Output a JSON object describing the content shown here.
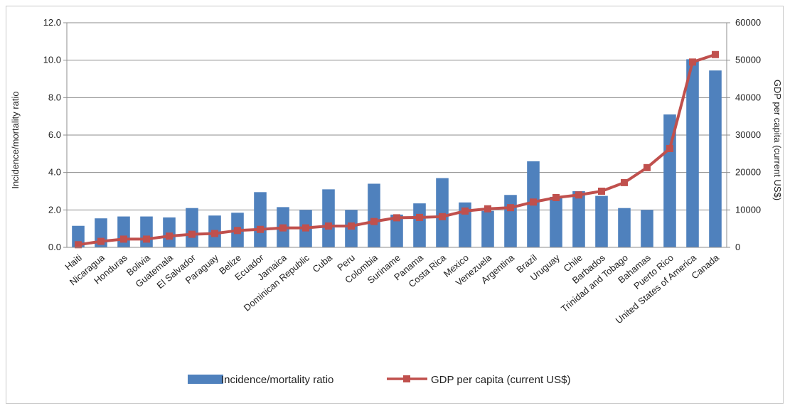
{
  "chart_data": {
    "type": "bar",
    "categories": [
      "Haiti",
      "Nicaragua",
      "Honduras",
      "Bolivia",
      "Guatemala",
      "El Salvador",
      "Paraguay",
      "Belize",
      "Ecuador",
      "Jamaica",
      "Dominican Republic",
      "Cuba",
      "Peru",
      "Colombia",
      "Suriname",
      "Panama",
      "Costa Rica",
      "Mexico",
      "Venezuela",
      "Argentina",
      "Brazil",
      "Uruguay",
      "Chile",
      "Barbados",
      "Trinidad and Tobago",
      "Bahamas",
      "Puerto Rico",
      "United States of America",
      "Canada"
    ],
    "series": [
      {
        "name": "Incidence/mortality ratio",
        "type": "bar",
        "axis": "left",
        "color": "#4F81BD",
        "values": [
          1.15,
          1.55,
          1.65,
          1.65,
          1.6,
          2.1,
          1.7,
          1.85,
          2.95,
          2.15,
          2.0,
          3.1,
          2.0,
          3.4,
          1.75,
          2.35,
          3.7,
          2.4,
          1.95,
          2.8,
          4.6,
          2.7,
          3.0,
          2.75,
          2.1,
          2.0,
          7.1,
          10.05,
          9.45
        ]
      },
      {
        "name": "GDP per capita (current US$)",
        "type": "line",
        "axis": "right",
        "color": "#C0504D",
        "values": [
          700,
          1600,
          2200,
          2200,
          3000,
          3500,
          3700,
          4500,
          4800,
          5200,
          5200,
          5700,
          5700,
          6900,
          7900,
          8000,
          8200,
          9700,
          10300,
          10600,
          12100,
          13300,
          14000,
          15000,
          17300,
          21300,
          26400,
          49500,
          51500
        ]
      }
    ],
    "ylim_left": [
      0,
      12
    ],
    "ylim_right": [
      0,
      60000
    ],
    "yticks_left": [
      "0.0",
      "2.0",
      "4.0",
      "6.0",
      "8.0",
      "10.0",
      "12.0"
    ],
    "yticks_right": [
      "0",
      "10000",
      "20000",
      "30000",
      "40000",
      "50000",
      "60000"
    ],
    "ylabel_left": "Incidence/mortality ratio",
    "ylabel_right": "GDP per capita (current US$)",
    "grid": true,
    "legend": "bottom"
  }
}
